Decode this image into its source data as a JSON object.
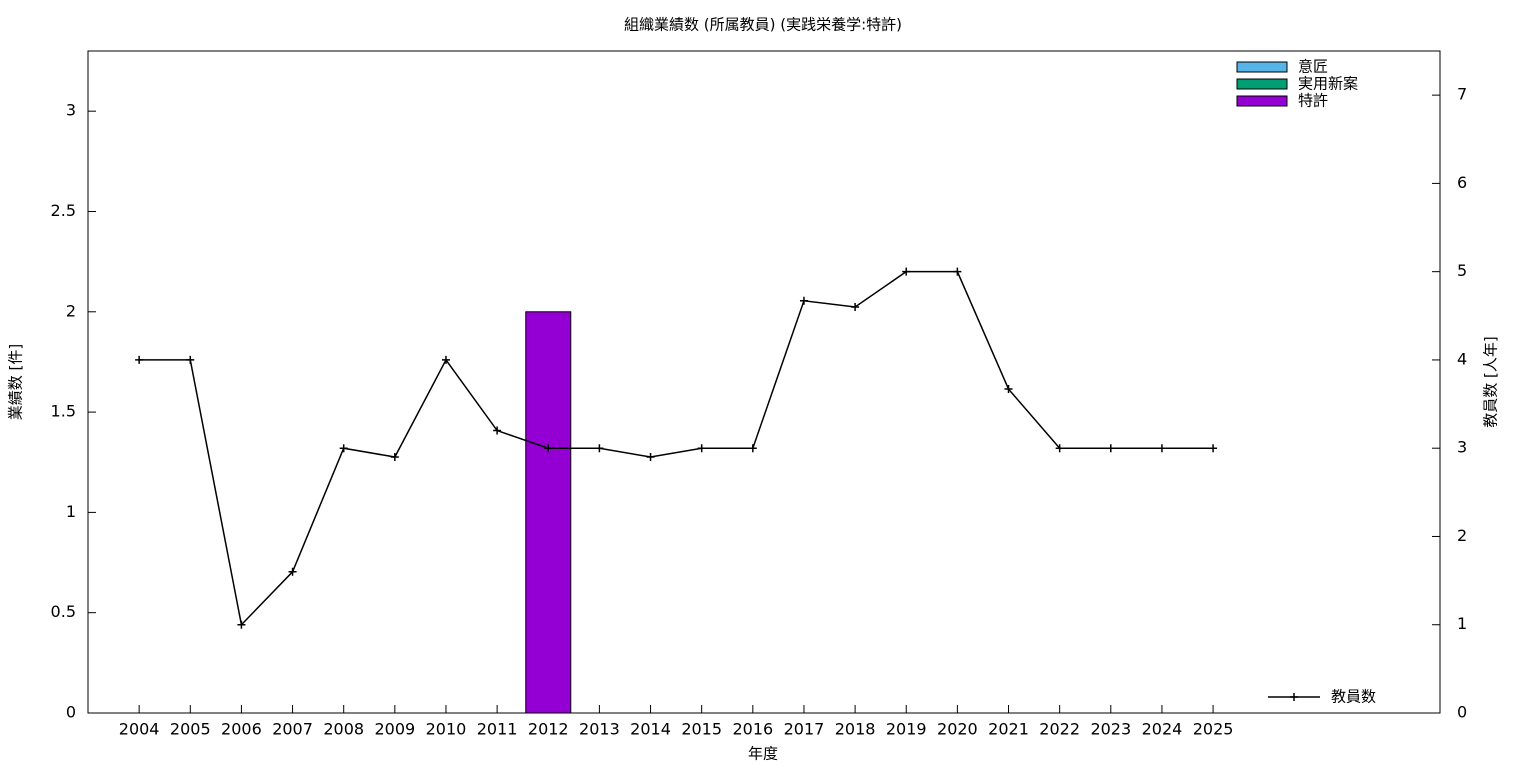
{
  "chart_data": {
    "type": "bar",
    "title": "組織業績数 (所属教員) (実践栄養学:特許)",
    "x_label": "年度",
    "y_label": "業績数 [件]",
    "y2_label": "教員数 [人年]",
    "categories": [
      "2004",
      "2005",
      "2006",
      "2007",
      "2008",
      "2009",
      "2010",
      "2011",
      "2012",
      "2013",
      "2014",
      "2015",
      "2016",
      "2017",
      "2018",
      "2019",
      "2020",
      "2021",
      "2022",
      "2023",
      "2024",
      "2025"
    ],
    "series": [
      {
        "name": "意匠",
        "type": "bar",
        "color": "#56b4e9",
        "values": [
          0,
          0,
          0,
          0,
          0,
          0,
          0,
          0,
          0,
          0,
          0,
          0,
          0,
          0,
          0,
          0,
          0,
          0,
          0,
          0,
          0,
          0
        ]
      },
      {
        "name": "実用新案",
        "type": "bar",
        "color": "#009e73",
        "values": [
          0,
          0,
          0,
          0,
          0,
          0,
          0,
          0,
          0,
          0,
          0,
          0,
          0,
          0,
          0,
          0,
          0,
          0,
          0,
          0,
          0,
          0
        ]
      },
      {
        "name": "特許",
        "type": "bar",
        "color": "#9400d3",
        "values": [
          0,
          0,
          0,
          0,
          0,
          0,
          0,
          0,
          2,
          0,
          0,
          0,
          0,
          0,
          0,
          0,
          0,
          0,
          0,
          0,
          0,
          0
        ]
      },
      {
        "name": "教員数",
        "type": "line",
        "axis": "y2",
        "color": "#000000",
        "values": [
          4,
          4,
          1,
          1.6,
          3,
          2.9,
          4,
          3.2,
          3,
          3,
          2.9,
          3,
          3,
          4.67,
          4.6,
          5,
          5,
          3.67,
          3,
          3,
          3,
          3
        ]
      }
    ],
    "ylim": [
      0,
      3.3
    ],
    "yticks": [
      0,
      0.5,
      1,
      1.5,
      2,
      2.5,
      3
    ],
    "y2lim": [
      0,
      7.5
    ],
    "y2ticks": [
      0,
      1,
      2,
      3,
      4,
      5,
      6,
      7
    ],
    "grid": false
  }
}
